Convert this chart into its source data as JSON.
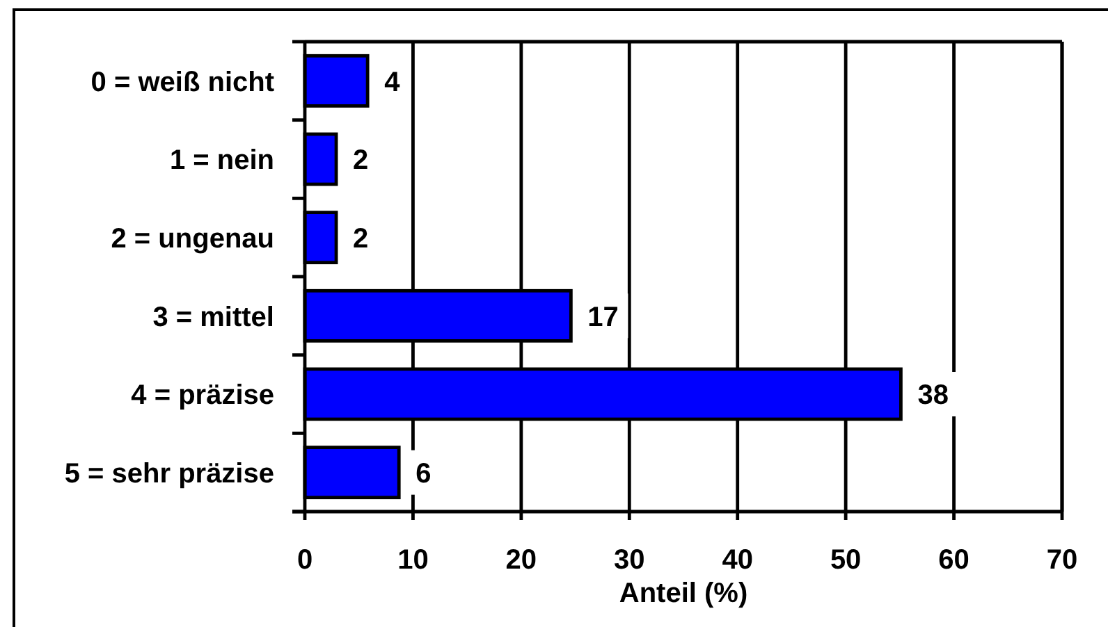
{
  "chart_data": {
    "type": "bar",
    "orientation": "horizontal",
    "categories": [
      "0 = weiß nicht",
      "1 = nein",
      "2 = ungenau",
      "3 = mittel",
      "4 = präzise",
      "5 = sehr präzise"
    ],
    "values": [
      5.8,
      2.9,
      2.9,
      24.6,
      55.1,
      8.7
    ],
    "color": "#0000ff",
    "annotations": [
      {
        "text": "4",
        "x": 5.8,
        "y": "0 = weiß nicht"
      },
      {
        "text": "2",
        "x": 2.9,
        "y": "1 = nein"
      },
      {
        "text": "2",
        "x": 2.9,
        "y": "2 = ungenau"
      },
      {
        "text": "17",
        "x": 24.6,
        "y": "3 = mittel"
      },
      {
        "text": "38",
        "x": 55.1,
        "y": "4 = präzise"
      },
      {
        "text": "6",
        "x": 8.7,
        "y": "5 = sehr präzise"
      }
    ],
    "xlabel": "Anteil (%)",
    "xlim": [
      0,
      70
    ],
    "xticks": [
      0,
      10,
      20,
      30,
      40,
      50,
      60,
      70
    ],
    "grid": "x"
  }
}
